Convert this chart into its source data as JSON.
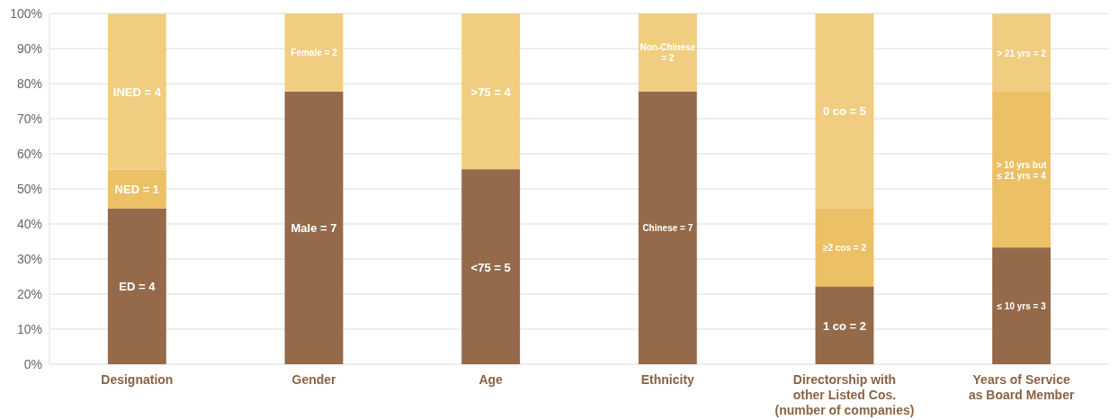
{
  "chart_data": {
    "type": "bar",
    "stacked": true,
    "categories": [
      "Designation",
      "Gender",
      "Age",
      "Ethnicity",
      "Directorship with\nother Listed Cos.\n(number of companies)",
      "Years of Service\nas Board Member"
    ],
    "series": [
      {
        "color": "#946a4a",
        "values": [
          44.4,
          77.8,
          55.6,
          77.8,
          22.2,
          33.3
        ]
      },
      {
        "color": "#ecc065",
        "values": [
          11.1,
          null,
          null,
          null,
          22.2,
          44.4
        ]
      },
      {
        "color": "#f0cd80",
        "values": [
          44.4,
          22.2,
          44.4,
          22.2,
          55.6,
          22.2
        ]
      }
    ],
    "annotations": [
      "ED = 4",
      "NED = 1",
      "INED = 4",
      "Male = 7",
      "Female = 2",
      "<75 = 5",
      ">75 = 4",
      "Chinese = 7",
      "Non-Chinese\n= 2",
      "1 co = 2",
      "≥2 cos = 2",
      "0 co = 5",
      "≤ 10 yrs = 3",
      "> 10 yrs but\n≤ 21 yrs = 4",
      "> 21 yrs = 2"
    ],
    "ylim": [
      0,
      100
    ],
    "yticks": [
      {
        "value": 0,
        "label": "0%"
      },
      {
        "value": 10,
        "label": "10%"
      },
      {
        "value": 20,
        "label": "20%"
      },
      {
        "value": 30,
        "label": "30%"
      },
      {
        "value": 40,
        "label": "40%"
      },
      {
        "value": 50,
        "label": "50%"
      },
      {
        "value": 60,
        "label": "60%"
      },
      {
        "value": 70,
        "label": "70%"
      },
      {
        "value": 80,
        "label": "80%"
      },
      {
        "value": 90,
        "label": "90%"
      },
      {
        "value": 100,
        "label": "100%"
      }
    ],
    "grid": "y"
  }
}
